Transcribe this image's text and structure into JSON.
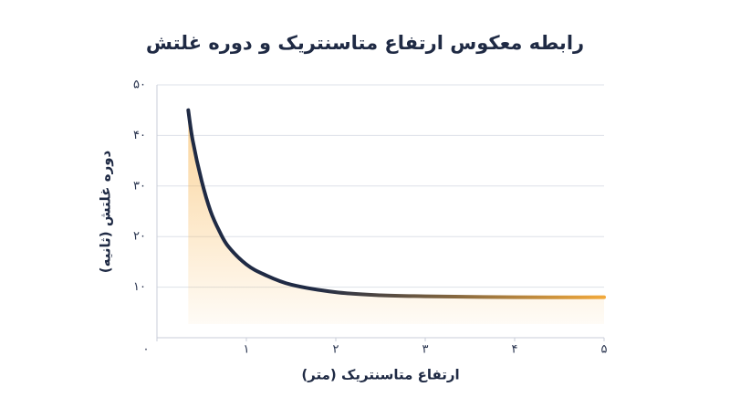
{
  "chart_data": {
    "type": "area-line",
    "title": "رابطه معکوس ارتفاع متاسنتریک و دوره غلتش",
    "x_label": "ارتفاع متاسنتریک (متر)",
    "y_label": "دوره غلتش (ثانیه)",
    "x": [
      0.35,
      0.4,
      0.5,
      0.6,
      0.7,
      0.8,
      1.0,
      1.2,
      1.5,
      2,
      2.5,
      3,
      4,
      5
    ],
    "values": [
      45,
      39,
      31,
      25,
      21,
      18,
      14.5,
      12.5,
      10.5,
      9,
      8.4,
      8.2,
      8,
      8
    ],
    "line_colors": [
      "#1f2a44",
      "#f2a93b"
    ],
    "fill_color": "#f7b046",
    "xlim": [
      0,
      5
    ],
    "xticks": [
      {
        "value": 0,
        "label": "۰"
      },
      {
        "value": 1,
        "label": "۱"
      },
      {
        "value": 2,
        "label": "۲"
      },
      {
        "value": 3,
        "label": "۳"
      },
      {
        "value": 4,
        "label": "۴"
      },
      {
        "value": 5,
        "label": "۵"
      }
    ],
    "ylim": [
      0,
      50
    ],
    "yticks": [
      {
        "value": 10,
        "label": "۱۰"
      },
      {
        "value": 20,
        "label": "۲۰"
      },
      {
        "value": 30,
        "label": "۳۰"
      },
      {
        "value": 40,
        "label": "۴۰"
      },
      {
        "value": 50,
        "label": "۵۰"
      }
    ],
    "grid": true
  }
}
